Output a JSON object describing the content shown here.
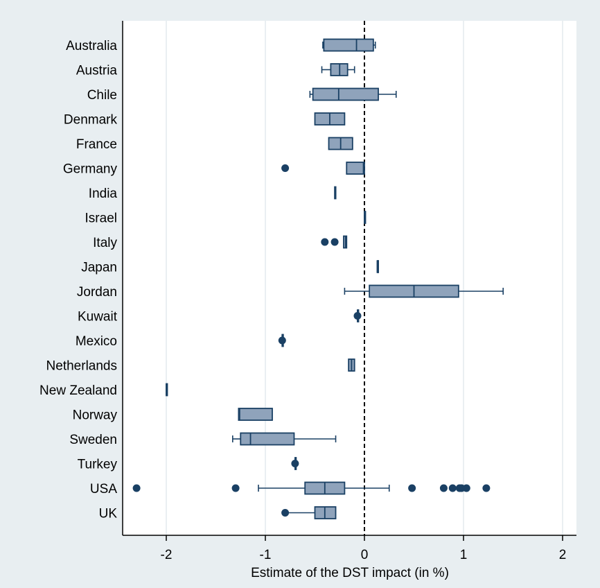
{
  "chart_data": {
    "type": "boxplot",
    "orientation": "horizontal",
    "title": "",
    "xlabel": "Estimate of the DST impact (in %)",
    "ylabel": "",
    "xlim": [
      -2.45,
      2.15
    ],
    "x_ticks": [
      -2,
      -1,
      0,
      1,
      2
    ],
    "x_tick_labels": [
      "-2",
      "-1",
      "0",
      "1",
      "2"
    ],
    "reference_line": {
      "x": 0,
      "style": "dashed"
    },
    "grid": "vertical",
    "colors": {
      "background": "#e8eef1",
      "plot": "#ffffff",
      "box_fill": "#8fa3bb",
      "box_stroke": "#1a4064",
      "grid": "#e4eaee",
      "outlier": "#1a4064"
    },
    "categories": [
      "Australia",
      "Austria",
      "Chile",
      "Denmark",
      "France",
      "Germany",
      "India",
      "Israel",
      "Italy",
      "Japan",
      "Jordan",
      "Kuwait",
      "Mexico",
      "Netherlands",
      "New Zealand",
      "Norway",
      "Sweden",
      "Turkey",
      "USA",
      "UK"
    ],
    "boxes": [
      {
        "country": "Australia",
        "whisker_low": -0.42,
        "q1": -0.41,
        "median": -0.08,
        "q3": 0.09,
        "whisker_high": 0.11,
        "outliers": []
      },
      {
        "country": "Austria",
        "whisker_low": -0.43,
        "q1": -0.34,
        "median": -0.25,
        "q3": -0.17,
        "whisker_high": -0.1,
        "outliers": []
      },
      {
        "country": "Chile",
        "whisker_low": -0.55,
        "q1": -0.52,
        "median": -0.26,
        "q3": 0.14,
        "whisker_high": 0.32,
        "outliers": []
      },
      {
        "country": "Denmark",
        "whisker_low": -0.5,
        "q1": -0.5,
        "median": -0.35,
        "q3": -0.2,
        "whisker_high": -0.2,
        "outliers": []
      },
      {
        "country": "France",
        "whisker_low": -0.36,
        "q1": -0.36,
        "median": -0.24,
        "q3": -0.12,
        "whisker_high": -0.12,
        "outliers": []
      },
      {
        "country": "Germany",
        "whisker_low": -0.18,
        "q1": -0.18,
        "median": -0.01,
        "q3": 0.0,
        "whisker_high": 0.0,
        "outliers": [
          -0.8
        ]
      },
      {
        "country": "India",
        "whisker_low": -0.3,
        "q1": -0.3,
        "median": -0.29,
        "q3": -0.29,
        "whisker_high": -0.29,
        "outliers": []
      },
      {
        "country": "Israel",
        "whisker_low": 0.0,
        "q1": 0.0,
        "median": 0.0,
        "q3": 0.0,
        "whisker_high": 0.0,
        "outliers": []
      },
      {
        "country": "Italy",
        "whisker_low": -0.21,
        "q1": -0.21,
        "median": -0.19,
        "q3": -0.18,
        "whisker_high": -0.18,
        "outliers": [
          -0.4,
          -0.3
        ]
      },
      {
        "country": "Japan",
        "whisker_low": 0.13,
        "q1": 0.13,
        "median": 0.13,
        "q3": 0.13,
        "whisker_high": 0.13,
        "outliers": []
      },
      {
        "country": "Jordan",
        "whisker_low": -0.2,
        "q1": 0.05,
        "median": 0.5,
        "q3": 0.95,
        "whisker_high": 1.4,
        "outliers": []
      },
      {
        "country": "Kuwait",
        "whisker_low": -0.07,
        "q1": -0.07,
        "median": -0.07,
        "q3": -0.07,
        "whisker_high": -0.07,
        "outliers": [
          -0.07
        ]
      },
      {
        "country": "Mexico",
        "whisker_low": -0.83,
        "q1": -0.83,
        "median": -0.83,
        "q3": -0.83,
        "whisker_high": -0.83,
        "outliers": [
          -0.83
        ]
      },
      {
        "country": "Netherlands",
        "whisker_low": -0.16,
        "q1": -0.16,
        "median": -0.13,
        "q3": -0.1,
        "whisker_high": -0.1,
        "outliers": []
      },
      {
        "country": "New Zealand",
        "whisker_low": -2.0,
        "q1": -2.0,
        "median": -2.0,
        "q3": -2.0,
        "whisker_high": -2.0,
        "outliers": []
      },
      {
        "country": "Norway",
        "whisker_low": -1.27,
        "q1": -1.27,
        "median": -1.26,
        "q3": -0.93,
        "whisker_high": -0.93,
        "outliers": []
      },
      {
        "country": "Sweden",
        "whisker_low": -1.33,
        "q1": -1.25,
        "median": -1.15,
        "q3": -0.71,
        "whisker_high": -0.29,
        "outliers": []
      },
      {
        "country": "Turkey",
        "whisker_low": -0.7,
        "q1": -0.7,
        "median": -0.7,
        "q3": -0.7,
        "whisker_high": -0.7,
        "outliers": [
          -0.7
        ]
      },
      {
        "country": "USA",
        "whisker_low": -1.07,
        "q1": -0.6,
        "median": -0.4,
        "q3": -0.2,
        "whisker_high": 0.25,
        "outliers": [
          -2.3,
          -1.3,
          0.48,
          0.8,
          0.89,
          0.96,
          0.98,
          1.03,
          1.23
        ]
      },
      {
        "country": "UK",
        "whisker_low": -0.79,
        "q1": -0.5,
        "median": -0.4,
        "q3": -0.29,
        "whisker_high": -0.29,
        "outliers": [
          -0.8
        ]
      }
    ]
  }
}
